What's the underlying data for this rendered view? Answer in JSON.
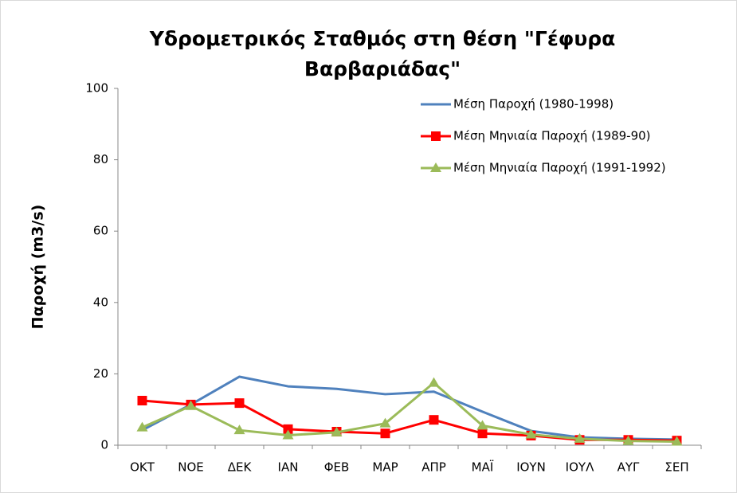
{
  "chart_data": {
    "type": "line",
    "title": "Υδρομετρικός Σταθμός στη θέση \"Γέφυρα Βαρβαριάδας\"",
    "y_label": "Παροχή (m3/s)",
    "categories": [
      "ΟΚΤ",
      "ΝΟΕ",
      "ΔΕΚ",
      "ΙΑΝ",
      "ΦΕΒ",
      "ΜΑΡ",
      "ΑΠΡ",
      "ΜΑΪ",
      "ΙΟΥΝ",
      "ΙΟΥΛ",
      "ΑΥΓ",
      "ΣΕΠ"
    ],
    "series": [
      {
        "name": "Μέση Παροχή (1980-1998)",
        "color": "#4f81bd",
        "marker": "none",
        "values": [
          4.2,
          11.4,
          19.2,
          16.5,
          15.8,
          14.3,
          15.0,
          9.4,
          4.0,
          2.2,
          1.8,
          1.6
        ]
      },
      {
        "name": "Μέση Μηνιαία Παροχή (1989-90)",
        "color": "#ff0000",
        "marker": "square",
        "values": [
          12.5,
          11.4,
          11.8,
          4.5,
          3.8,
          3.3,
          7.1,
          3.3,
          2.7,
          1.5,
          1.5,
          1.3
        ]
      },
      {
        "name": "Μέση Μηνιαία Παροχή (1991-1992)",
        "color": "#9bbb59",
        "marker": "triangle",
        "values": [
          5.0,
          11.0,
          4.2,
          2.8,
          3.6,
          6.1,
          17.5,
          5.5,
          3.0,
          1.8,
          1.2,
          1.0
        ]
      }
    ],
    "ylim": [
      0,
      100
    ],
    "yticks": [
      0,
      20,
      40,
      60,
      80,
      100
    ],
    "grid": false,
    "legend": "upper right"
  }
}
